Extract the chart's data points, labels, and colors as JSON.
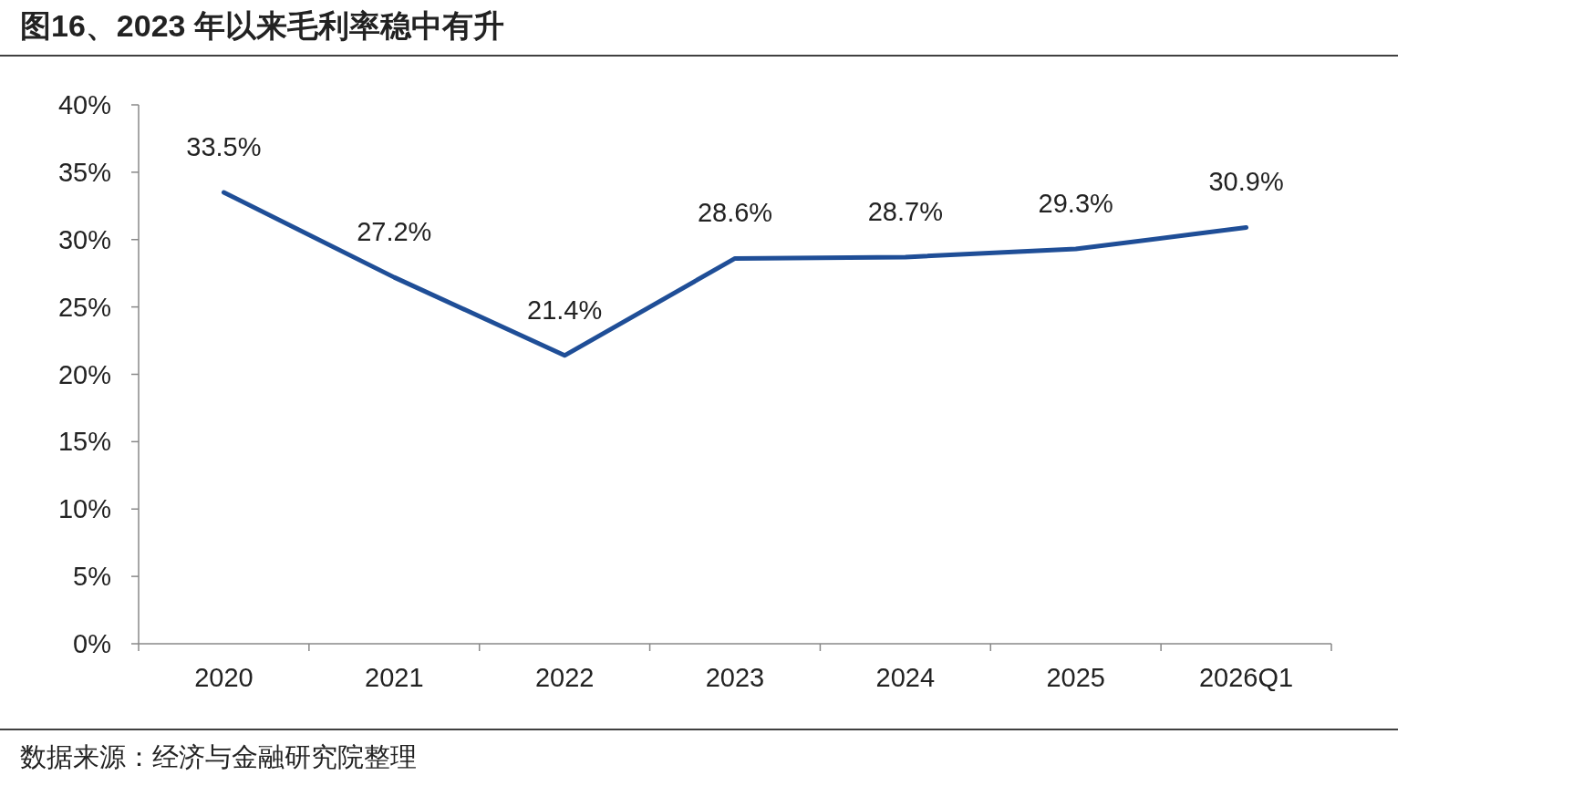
{
  "chart_data": {
    "type": "line",
    "title": "图16、2023 年以来毛利率稳中有升",
    "categories": [
      "2020",
      "2021",
      "2022",
      "2023",
      "2024",
      "2025",
      "2026Q1"
    ],
    "values": [
      33.5,
      27.2,
      21.4,
      28.6,
      28.7,
      29.3,
      30.9
    ],
    "color": "#1f4e97",
    "ylim": [
      0,
      40
    ],
    "yticks": [
      {
        "value": 0,
        "label": "0%"
      },
      {
        "value": 5,
        "label": "5%"
      },
      {
        "value": 10,
        "label": "10%"
      },
      {
        "value": 15,
        "label": "15%"
      },
      {
        "value": 20,
        "label": "20%"
      },
      {
        "value": 25,
        "label": "25%"
      },
      {
        "value": 30,
        "label": "30%"
      },
      {
        "value": 35,
        "label": "35%"
      },
      {
        "value": 40,
        "label": "40%"
      }
    ],
    "value_labels": [
      "33.5%",
      "27.2%",
      "21.4%",
      "28.6%",
      "28.7%",
      "29.3%",
      "30.9%"
    ],
    "annotations": [
      "数据来源：经济与金融研究院整理"
    ]
  }
}
